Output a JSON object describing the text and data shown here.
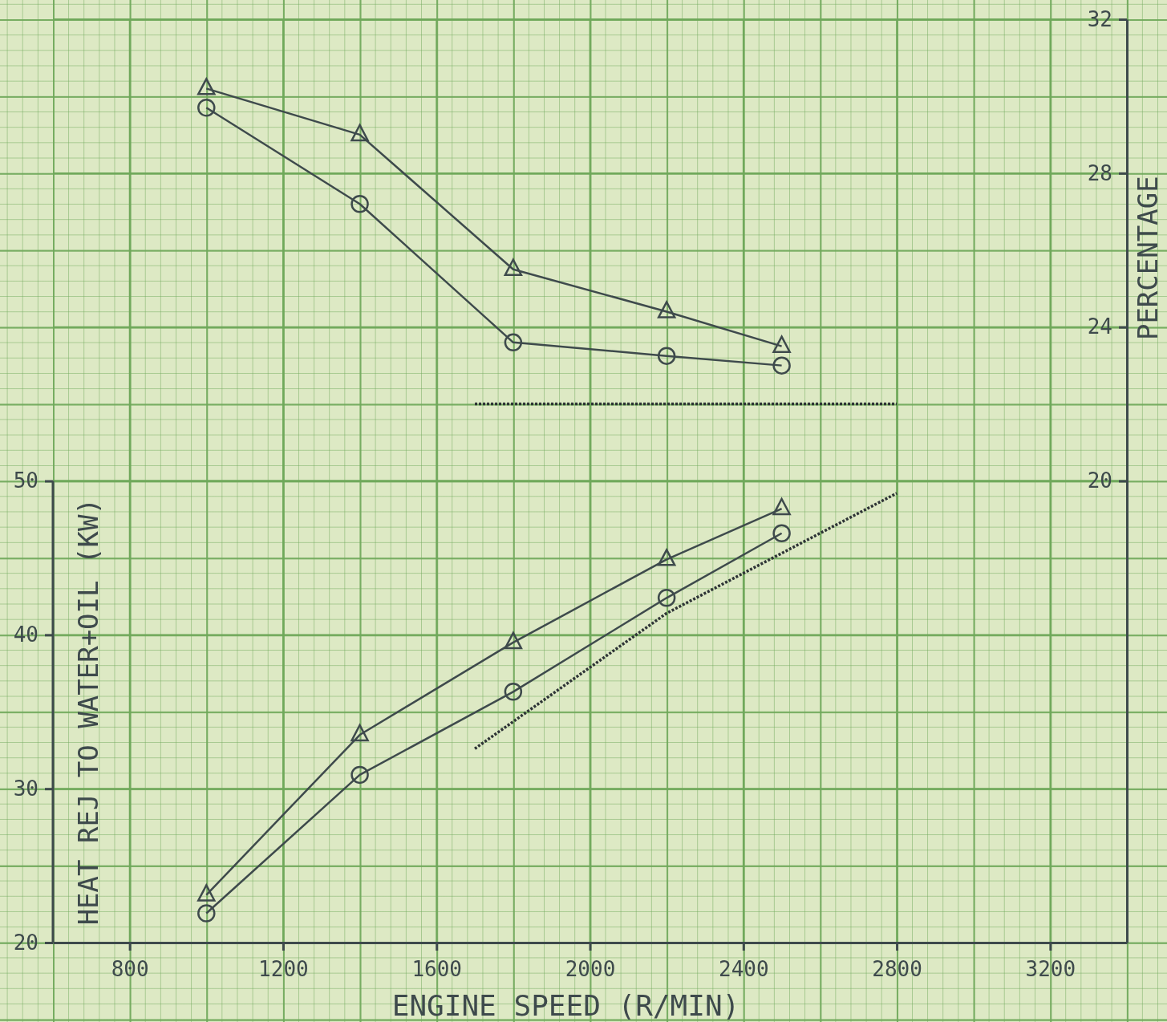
{
  "chart_data": {
    "type": "line",
    "xlabel": "ENGINE SPEED (R/MIN)",
    "ylabel": "HEAT REJ TO WATER+OIL (KW)",
    "y2label": "PERCENTAGE",
    "xlim": [
      600,
      3400
    ],
    "xticks": [
      800,
      1200,
      1600,
      2000,
      2400,
      2800,
      3200
    ],
    "ylim": [
      20,
      80
    ],
    "yticks": [
      20,
      30,
      40,
      50
    ],
    "y2lim": [
      8,
      32
    ],
    "y2ticks": [
      20,
      24,
      28,
      32
    ],
    "grid": true,
    "line_style": "solid",
    "series": [
      {
        "color": "#3e4a4c",
        "marker": "triangle",
        "x": [
          1000,
          1400,
          1800,
          2200,
          2500
        ],
        "values": [
          23.1,
          33.5,
          39.5,
          44.9,
          48.2
        ]
      },
      {
        "color": "#3e4a4c",
        "marker": "circle",
        "x": [
          1000,
          1400,
          1800,
          2200,
          2500
        ],
        "values": [
          21.9,
          30.9,
          36.3,
          42.4,
          46.6
        ]
      },
      {
        "color": "#2e3436",
        "marker": "none",
        "line_style": "dotted",
        "x": [
          1700,
          2200,
          2800
        ],
        "values": [
          32.6,
          41.4,
          49.2
        ]
      },
      {
        "color": "#3e4a4c",
        "marker": "triangle",
        "axis": "y2",
        "x": [
          1000,
          1400,
          1800,
          2200,
          2500
        ],
        "values": [
          30.2,
          29.0,
          25.5,
          24.4,
          23.5
        ]
      },
      {
        "color": "#3e4a4c",
        "marker": "circle",
        "axis": "y2",
        "x": [
          1000,
          1400,
          1800,
          2200,
          2500
        ],
        "values": [
          29.7,
          27.2,
          23.6,
          23.25,
          23.0
        ]
      },
      {
        "color": "#2e3436",
        "marker": "none",
        "line_style": "dotted",
        "axis": "y2",
        "x": [
          1700,
          2800
        ],
        "values": [
          22.0,
          22.0
        ]
      }
    ]
  }
}
